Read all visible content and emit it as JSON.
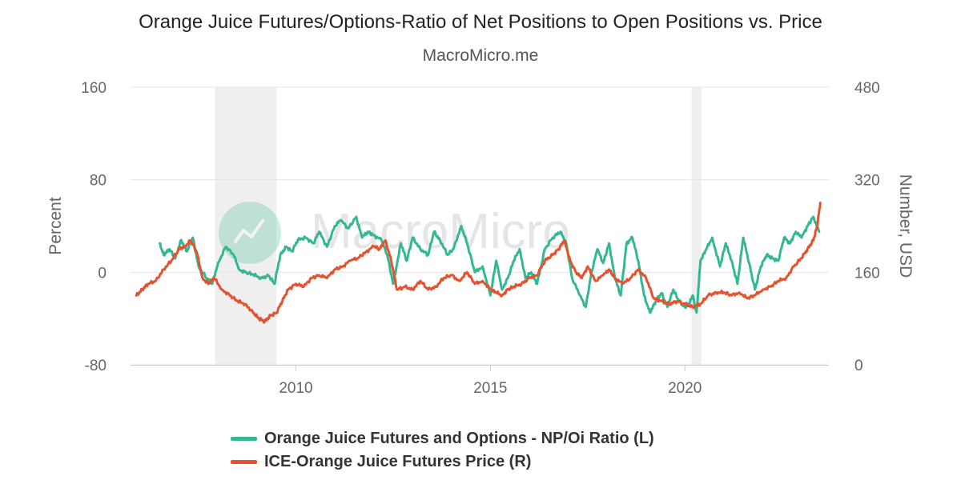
{
  "header": {
    "title": "Orange Juice Futures/Options-Ratio of Net Positions to Open Positions vs. Price",
    "subtitle": "MacroMicro.me"
  },
  "watermark": {
    "text": "MacroMicro"
  },
  "colors": {
    "ratio": "#34b792",
    "price": "#e4532f",
    "recession": "#efefef",
    "grid": "#e6e6e6"
  },
  "chart_data": {
    "type": "line",
    "title": "Orange Juice Futures/Options-Ratio of Net Positions to Open Positions vs. Price",
    "subtitle": "MacroMicro.me",
    "xlim": [
      2005.75,
      2023.7
    ],
    "xticks": [
      2010,
      2015,
      2020
    ],
    "left_axis": {
      "label": "Percent",
      "ylim": [
        -80,
        160
      ],
      "ticks": [
        -80,
        0,
        80,
        160
      ]
    },
    "right_axis": {
      "label": "Number, USD",
      "ylim": [
        0,
        480
      ],
      "ticks": [
        0,
        160,
        320,
        480
      ]
    },
    "grid": true,
    "legend_position": "bottom",
    "shaded_periods": [
      [
        2007.92,
        2009.5
      ],
      [
        2020.17,
        2020.42
      ]
    ],
    "series": [
      {
        "name": "Orange Juice Futures and Options - NP/Oi Ratio (L)",
        "axis": "left",
        "color": "#34b792",
        "x": [
          2006.5,
          2006.6,
          2006.75,
          2006.9,
          2007.05,
          2007.2,
          2007.35,
          2007.5,
          2007.7,
          2007.85,
          2008.0,
          2008.2,
          2008.4,
          2008.55,
          2008.7,
          2008.9,
          2009.1,
          2009.3,
          2009.45,
          2009.6,
          2009.75,
          2009.9,
          2010.05,
          2010.25,
          2010.45,
          2010.6,
          2010.8,
          2011.0,
          2011.15,
          2011.35,
          2011.55,
          2011.7,
          2011.85,
          2012.0,
          2012.2,
          2012.35,
          2012.5,
          2012.7,
          2012.85,
          2013.0,
          2013.2,
          2013.4,
          2013.55,
          2013.7,
          2013.9,
          2014.05,
          2014.25,
          2014.4,
          2014.6,
          2014.8,
          2015.0,
          2015.15,
          2015.3,
          2015.45,
          2015.6,
          2015.75,
          2015.9,
          2016.05,
          2016.2,
          2016.4,
          2016.6,
          2016.8,
          2016.95,
          2017.1,
          2017.3,
          2017.45,
          2017.6,
          2017.75,
          2017.9,
          2018.05,
          2018.2,
          2018.35,
          2018.5,
          2018.65,
          2018.8,
          2018.95,
          2019.1,
          2019.25,
          2019.4,
          2019.55,
          2019.7,
          2019.85,
          2020.0,
          2020.1,
          2020.2,
          2020.3,
          2020.4,
          2020.55,
          2020.7,
          2020.9,
          2021.05,
          2021.2,
          2021.35,
          2021.5,
          2021.65,
          2021.8,
          2021.95,
          2022.1,
          2022.25,
          2022.4,
          2022.55,
          2022.7,
          2022.85,
          2023.0,
          2023.15,
          2023.3,
          2023.45
        ],
        "values": [
          25,
          15,
          20,
          12,
          28,
          18,
          30,
          5,
          -5,
          -10,
          8,
          22,
          15,
          2,
          0,
          -2,
          -5,
          -3,
          -10,
          15,
          22,
          18,
          28,
          30,
          25,
          35,
          22,
          40,
          45,
          38,
          48,
          30,
          35,
          32,
          28,
          15,
          -10,
          25,
          10,
          30,
          20,
          15,
          35,
          28,
          15,
          20,
          40,
          25,
          0,
          5,
          -20,
          10,
          -15,
          -5,
          10,
          20,
          -5,
          0,
          -10,
          20,
          30,
          35,
          25,
          -5,
          -20,
          -30,
          0,
          20,
          8,
          25,
          -5,
          -20,
          25,
          30,
          10,
          -20,
          -35,
          -25,
          -18,
          -30,
          -15,
          -25,
          -30,
          -28,
          -20,
          -35,
          10,
          20,
          30,
          5,
          25,
          10,
          -10,
          30,
          8,
          -15,
          5,
          15,
          12,
          10,
          30,
          25,
          35,
          30,
          40,
          48,
          35
        ]
      },
      {
        "name": "ICE-Orange Juice Futures Price (R)",
        "axis": "right",
        "color": "#e4532f",
        "x": [
          2005.9,
          2006.05,
          2006.2,
          2006.4,
          2006.6,
          2006.8,
          2007.0,
          2007.15,
          2007.3,
          2007.45,
          2007.6,
          2007.75,
          2007.9,
          2008.1,
          2008.3,
          2008.5,
          2008.7,
          2008.9,
          2009.05,
          2009.2,
          2009.35,
          2009.5,
          2009.65,
          2009.8,
          2010.0,
          2010.2,
          2010.4,
          2010.6,
          2010.8,
          2011.0,
          2011.2,
          2011.4,
          2011.6,
          2011.8,
          2012.0,
          2012.15,
          2012.3,
          2012.45,
          2012.6,
          2012.8,
          2013.0,
          2013.2,
          2013.4,
          2013.6,
          2013.8,
          2014.0,
          2014.2,
          2014.4,
          2014.6,
          2014.8,
          2015.0,
          2015.15,
          2015.3,
          2015.45,
          2015.6,
          2015.8,
          2016.0,
          2016.2,
          2016.4,
          2016.6,
          2016.75,
          2016.9,
          2017.05,
          2017.2,
          2017.35,
          2017.5,
          2017.7,
          2017.9,
          2018.05,
          2018.2,
          2018.4,
          2018.6,
          2018.8,
          2019.0,
          2019.2,
          2019.4,
          2019.6,
          2019.8,
          2020.0,
          2020.2,
          2020.4,
          2020.6,
          2020.8,
          2021.0,
          2021.2,
          2021.4,
          2021.6,
          2021.8,
          2022.0,
          2022.2,
          2022.4,
          2022.6,
          2022.8,
          2023.0,
          2023.15,
          2023.3,
          2023.4,
          2023.48
        ],
        "values": [
          120,
          130,
          140,
          145,
          165,
          180,
          200,
          205,
          215,
          195,
          150,
          140,
          150,
          130,
          120,
          110,
          105,
          90,
          80,
          75,
          85,
          90,
          110,
          130,
          140,
          135,
          150,
          155,
          150,
          165,
          170,
          180,
          185,
          195,
          205,
          200,
          215,
          180,
          130,
          135,
          130,
          145,
          130,
          135,
          150,
          155,
          145,
          160,
          140,
          145,
          130,
          125,
          120,
          130,
          135,
          140,
          150,
          155,
          180,
          190,
          200,
          215,
          180,
          160,
          150,
          170,
          145,
          155,
          165,
          150,
          140,
          150,
          165,
          150,
          115,
          110,
          105,
          110,
          105,
          100,
          105,
          120,
          125,
          125,
          120,
          125,
          115,
          120,
          130,
          135,
          145,
          150,
          170,
          185,
          200,
          215,
          240,
          280
        ]
      }
    ]
  }
}
